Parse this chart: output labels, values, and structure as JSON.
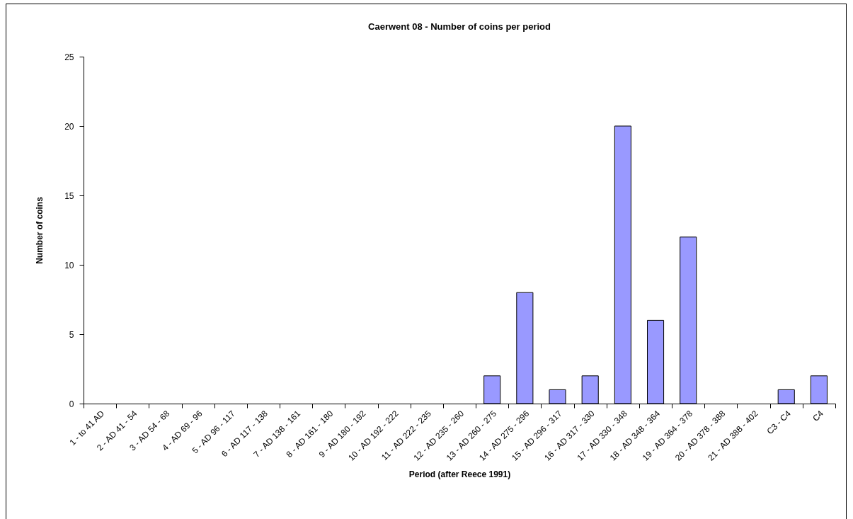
{
  "chart_data": {
    "type": "bar",
    "title": "Caerwent 08 - Number of coins per period",
    "xlabel": "Period (after Reece 1991)",
    "ylabel": "Number of coins",
    "categories": [
      "1 - to 41 AD",
      "2 - AD 41 - 54",
      "3 - AD 54 - 68",
      "4 - AD 69 - 96",
      "5 - AD 96 - 117",
      "6 - AD 117 - 138",
      "7 - AD 138 - 161",
      "8 - AD 161 - 180",
      "9 - AD 180 - 192",
      "10 - AD 192 - 222",
      "11 - AD 222 - 235",
      "12 - AD 235 - 260",
      "13 - AD 260 - 275",
      "14 - AD 275 - 296",
      "15 - AD 296 - 317",
      "16 - AD 317 - 330",
      "17 - AD 330 - 348",
      "18 - AD 348 - 364",
      "19 - AD 364 - 378",
      "20 - AD 378 - 388",
      "21 - AD 388 - 402",
      "C3 - C4",
      "C4"
    ],
    "values": [
      0,
      0,
      0,
      0,
      0,
      0,
      0,
      0,
      0,
      0,
      0,
      0,
      2,
      8,
      1,
      2,
      20,
      6,
      12,
      0,
      0,
      1,
      2
    ],
    "color": "#9999ff",
    "ylim": [
      0,
      25
    ],
    "yticks": [
      0,
      5,
      10,
      15,
      20,
      25
    ],
    "grid": false
  }
}
